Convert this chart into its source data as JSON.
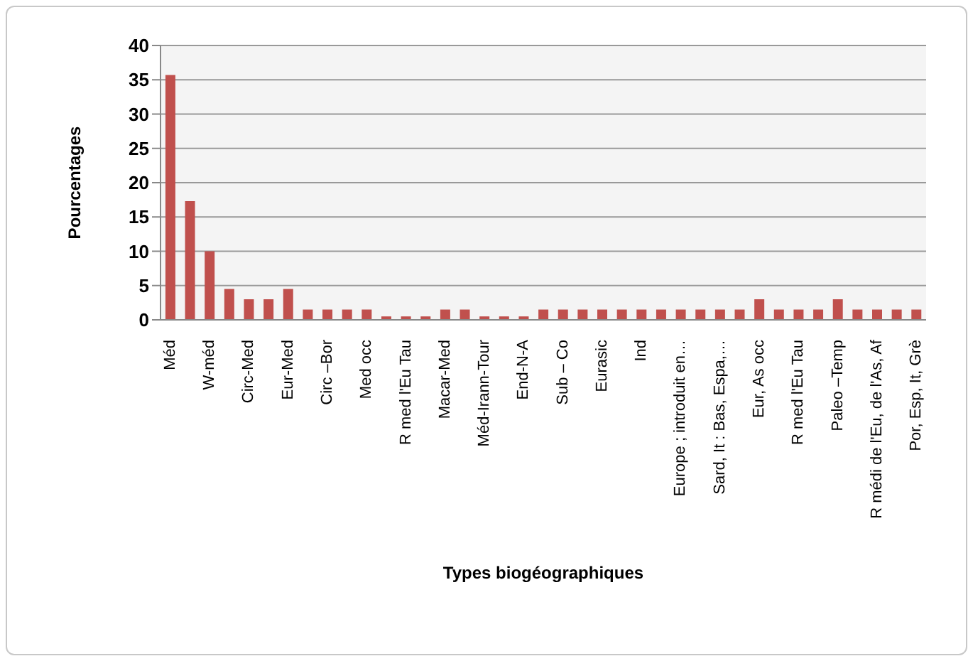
{
  "chart_data": {
    "type": "bar",
    "xlabel": "Types biogéographiques",
    "ylabel": "Pourcentages",
    "categories": [
      "Méd",
      null,
      "W-méd",
      null,
      "Circ-Med",
      null,
      "Eur-Med",
      null,
      "Circ –Bor",
      null,
      "Med occ",
      null,
      "R med l'Eu Tau",
      null,
      "Macar-Med",
      null,
      "Méd-Irann-Tour",
      null,
      "End-N-A",
      null,
      "Sub – Co",
      null,
      "Eurasic",
      null,
      "Ind",
      null,
      "Europe ; introduit en…",
      null,
      "Sard, It : Bas, Espa,…",
      null,
      "Eur, As occ",
      null,
      "R med l'Eu Tau",
      null,
      "Paleo –Temp",
      null,
      "R médi de l'Eu, de l'As, Af",
      null,
      "Por, Esp, It, Grè"
    ],
    "values": [
      35.7,
      17.3,
      10,
      4.5,
      3,
      3,
      4.5,
      1.5,
      1.5,
      1.5,
      1.5,
      0.5,
      0.5,
      0.5,
      1.5,
      1.5,
      0.5,
      0.5,
      0.5,
      1.5,
      1.5,
      1.5,
      1.5,
      1.5,
      1.5,
      1.5,
      1.5,
      1.5,
      1.5,
      1.5,
      3,
      1.5,
      1.5,
      1.5,
      3,
      1.5,
      1.5,
      1.5,
      1.5
    ],
    "color": "#c0504d",
    "ylim": [
      0,
      40
    ],
    "yticks": [
      0,
      5,
      10,
      15,
      20,
      25,
      30,
      35,
      40
    ],
    "grid": "y"
  }
}
